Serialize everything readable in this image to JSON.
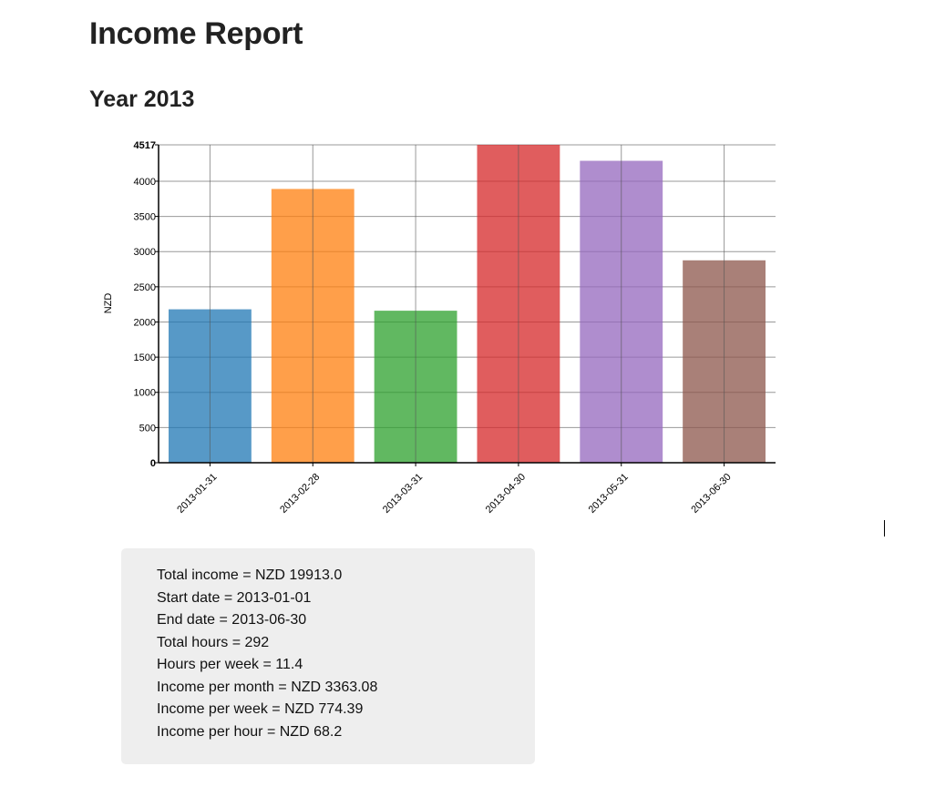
{
  "page": {
    "title": "Income Report",
    "section_title": "Year 2013"
  },
  "chart_data": {
    "type": "bar",
    "categories": [
      "2013-01-31",
      "2013-02-28",
      "2013-03-31",
      "2013-04-30",
      "2013-05-31",
      "2013-06-30"
    ],
    "values": [
      2180,
      3890,
      2160,
      4517,
      4290,
      2876
    ],
    "colors": [
      "#1f77b4",
      "#ff7f0e",
      "#2ca02c",
      "#d62728",
      "#9467bd",
      "#8c564b"
    ],
    "bar_opacity": 0.75,
    "title": "",
    "xlabel": "",
    "ylabel": "NZD",
    "ylim": [
      0,
      4517
    ],
    "yticks": [
      0,
      500,
      1000,
      1500,
      2000,
      2500,
      3000,
      3500,
      4000,
      4517
    ],
    "grid": true,
    "legend": "none"
  },
  "summary": {
    "lines": [
      "Total income = NZD 19913.0",
      "Start date = 2013-01-01",
      "End date = 2013-06-30",
      "Total hours = 292",
      "Hours per week = 11.4",
      "Income per month = NZD 3363.08",
      "Income per week = NZD 774.39",
      "Income per hour = NZD 68.2"
    ]
  }
}
